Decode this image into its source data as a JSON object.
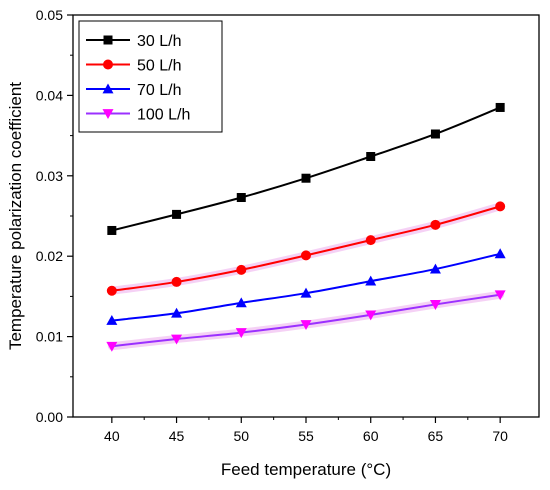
{
  "chart_data": {
    "type": "line",
    "title": "",
    "xlabel": "Feed temperature (°C)",
    "ylabel": "Temperature polarization coefficient",
    "x": [
      40,
      45,
      50,
      55,
      60,
      65,
      70
    ],
    "xlim": [
      37,
      73
    ],
    "ylim": [
      0,
      0.05
    ],
    "xticks": [
      "40",
      "45",
      "50",
      "55",
      "60",
      "65",
      "70"
    ],
    "yticks": [
      "0.00",
      "0.01",
      "0.02",
      "0.03",
      "0.04",
      "0.05"
    ],
    "grid": false,
    "legend_position": "top-left",
    "series": [
      {
        "name": "30 L/h",
        "color": "#000000",
        "marker": "square",
        "values": [
          0.0232,
          0.0252,
          0.0273,
          0.0297,
          0.0324,
          0.0352,
          0.0385
        ]
      },
      {
        "name": "50 L/h",
        "color": "#ff0000",
        "marker": "circle",
        "values": [
          0.0157,
          0.0168,
          0.0183,
          0.0201,
          0.022,
          0.0239,
          0.0262
        ]
      },
      {
        "name": "70 L/h",
        "color": "#0000ff",
        "marker": "triangle-up",
        "values": [
          0.012,
          0.0129,
          0.0142,
          0.0154,
          0.0169,
          0.0184,
          0.0203
        ]
      },
      {
        "name": "100 L/h",
        "color": "#ff00ff",
        "line_color": "#9b30ff",
        "marker": "triangle-down",
        "values": [
          0.0088,
          0.0097,
          0.0105,
          0.0115,
          0.0127,
          0.014,
          0.0152
        ]
      }
    ]
  }
}
